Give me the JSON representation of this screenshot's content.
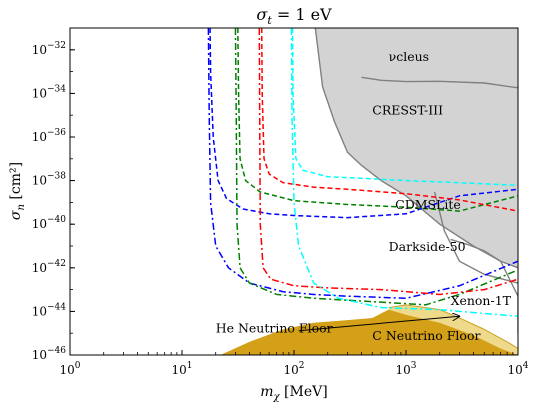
{
  "chart_data": {
    "type": "line",
    "title": "σ_t = 1 eV",
    "xlabel": "m_χ [MeV]",
    "ylabel": "σ_n [cm²]",
    "xscale": "log",
    "yscale": "log",
    "xlim": [
      1,
      10000
    ],
    "ylim": [
      1e-46,
      1e-31
    ],
    "grid": false,
    "x_ticks": [
      {
        "value": 1,
        "base": "10",
        "exp": "0"
      },
      {
        "value": 10,
        "base": "10",
        "exp": "1"
      },
      {
        "value": 100,
        "base": "10",
        "exp": "2"
      },
      {
        "value": 1000,
        "base": "10",
        "exp": "3"
      },
      {
        "value": 10000,
        "base": "10",
        "exp": "4"
      }
    ],
    "y_ticks": [
      {
        "value": 1e-32,
        "base": "10",
        "exp": "−32"
      },
      {
        "value": 1e-34,
        "base": "10",
        "exp": "−34"
      },
      {
        "value": 1e-36,
        "base": "10",
        "exp": "−36"
      },
      {
        "value": 1e-38,
        "base": "10",
        "exp": "−38"
      },
      {
        "value": 1e-40,
        "base": "10",
        "exp": "−40"
      },
      {
        "value": 1e-42,
        "base": "10",
        "exp": "−42"
      },
      {
        "value": 1e-44,
        "base": "10",
        "exp": "−44"
      },
      {
        "value": 1e-46,
        "base": "10",
        "exp": "−46"
      }
    ],
    "colors": {
      "excluded_fill": "#d3d3d3",
      "excluded_edge": "#808080",
      "neutrino_C": "#d4a017",
      "neutrino_He": "#efd98a",
      "blue": "#0000ff",
      "green": "#008000",
      "red": "#ff0000",
      "cyan": "#00ffff"
    },
    "excluded_regions": [
      {
        "points": [
          [
            155,
            1e-31
          ],
          [
            180,
            2e-34
          ],
          [
            230,
            5e-36
          ],
          [
            300,
            2e-37
          ],
          [
            400,
            5e-38
          ],
          [
            600,
            1e-38
          ],
          [
            1000,
            2e-39
          ],
          [
            2000,
            1e-40
          ],
          [
            4000,
            1e-41
          ],
          [
            7000,
            2e-42
          ],
          [
            10000,
            1e-42
          ],
          [
            10000,
            1e-31
          ]
        ]
      }
    ],
    "exp_curves": [
      {
        "points": [
          [
            155,
            1e-31
          ],
          [
            180,
            2e-34
          ],
          [
            230,
            5e-36
          ],
          [
            300,
            2e-37
          ],
          [
            400,
            5e-38
          ],
          [
            600,
            1e-38
          ],
          [
            1000,
            2e-39
          ],
          [
            2000,
            1e-40
          ],
          [
            4000,
            1e-41
          ],
          [
            7000,
            2e-42
          ],
          [
            10000,
            1e-42
          ]
        ]
      },
      {
        "points": [
          [
            400,
            5.5e-34
          ],
          [
            600,
            4e-34
          ],
          [
            1000,
            3.5e-34
          ],
          [
            2000,
            3.6e-34
          ],
          [
            5000,
            3e-34
          ],
          [
            10000,
            1.8e-34
          ]
        ]
      },
      {
        "points": [
          [
            1800,
            3e-39
          ],
          [
            2200,
            5e-41
          ],
          [
            3000,
            2e-42
          ],
          [
            5000,
            5e-43
          ],
          [
            10000,
            2e-43
          ]
        ]
      },
      {
        "points": [
          [
            2500,
            2e-41
          ],
          [
            3500,
            1.2e-41
          ],
          [
            5000,
            6e-42
          ],
          [
            7000,
            2e-42
          ],
          [
            10000,
            5e-44
          ],
          [
            10000,
            1e-45
          ]
        ]
      }
    ],
    "series": [
      {
        "color": "blue",
        "dash": "dashed",
        "points": [
          [
            17.8,
            1e-31
          ],
          [
            18,
            1e-33
          ],
          [
            19,
            1e-36
          ],
          [
            21,
            1e-38
          ],
          [
            25,
            1.5e-39
          ],
          [
            35,
            5e-40
          ],
          [
            60,
            3e-40
          ],
          [
            100,
            2.5e-40
          ],
          [
            300,
            2e-40
          ],
          [
            1000,
            3e-40
          ],
          [
            3000,
            2e-39
          ],
          [
            10000,
            4e-39
          ]
        ]
      },
      {
        "color": "blue",
        "dash": "dashdot",
        "points": [
          [
            17.2,
            1e-31
          ],
          [
            17.5,
            1e-35
          ],
          [
            18,
            1e-39
          ],
          [
            20,
            1e-41
          ],
          [
            26,
            1e-42
          ],
          [
            40,
            2e-43
          ],
          [
            80,
            8e-44
          ],
          [
            150,
            6e-44
          ],
          [
            300,
            5e-44
          ],
          [
            1000,
            4e-44
          ],
          [
            3000,
            1.5e-43
          ],
          [
            10000,
            2e-42
          ]
        ]
      },
      {
        "color": "green",
        "dash": "dashed",
        "points": [
          [
            31.5,
            1e-31
          ],
          [
            32,
            1e-34
          ],
          [
            33,
            1e-37
          ],
          [
            37,
            1e-38
          ],
          [
            50,
            3e-39
          ],
          [
            100,
            1.2e-39
          ],
          [
            300,
            8e-40
          ],
          [
            1000,
            6e-40
          ],
          [
            3000,
            4e-40
          ],
          [
            10000,
            2e-39
          ]
        ]
      },
      {
        "color": "green",
        "dash": "dashdot",
        "points": [
          [
            30,
            1e-31
          ],
          [
            30.5,
            1e-35
          ],
          [
            31,
            1e-40
          ],
          [
            33,
            1e-42
          ],
          [
            40,
            2e-43
          ],
          [
            70,
            6e-44
          ],
          [
            150,
            4e-44
          ],
          [
            400,
            3e-44
          ],
          [
            1500,
            2e-44
          ],
          [
            3000,
            6e-44
          ],
          [
            10000,
            8e-43
          ]
        ]
      },
      {
        "color": "red",
        "dash": "dashed",
        "points": [
          [
            51.5,
            1e-31
          ],
          [
            52,
            1e-34
          ],
          [
            54,
            1e-37
          ],
          [
            60,
            2e-38
          ],
          [
            80,
            8e-39
          ],
          [
            150,
            5e-39
          ],
          [
            300,
            4e-39
          ],
          [
            1000,
            2.5e-39
          ],
          [
            3000,
            1.3e-39
          ],
          [
            10000,
            4e-40
          ]
        ]
      },
      {
        "color": "red",
        "dash": "dashdot",
        "points": [
          [
            49,
            1e-31
          ],
          [
            49.5,
            1e-36
          ],
          [
            50,
            1e-40
          ],
          [
            53,
            1e-42
          ],
          [
            62,
            3e-43
          ],
          [
            100,
            1.5e-43
          ],
          [
            200,
            1.2e-43
          ],
          [
            600,
            1e-43
          ],
          [
            2000,
            6e-44
          ],
          [
            5000,
            1e-43
          ],
          [
            10000,
            3e-43
          ]
        ]
      },
      {
        "color": "cyan",
        "dash": "dashed",
        "points": [
          [
            97,
            1e-31
          ],
          [
            98,
            1e-34
          ],
          [
            104,
            1e-37
          ],
          [
            120,
            3e-38
          ],
          [
            200,
            1.5e-38
          ],
          [
            500,
            1.2e-38
          ],
          [
            1000,
            1e-38
          ],
          [
            3000,
            8e-39
          ],
          [
            10000,
            6e-39
          ]
        ]
      },
      {
        "color": "cyan",
        "dash": "dashdot",
        "points": [
          [
            95,
            1e-31
          ],
          [
            96,
            1e-35
          ],
          [
            100,
            1e-39
          ],
          [
            110,
            1e-41
          ],
          [
            150,
            2e-43
          ],
          [
            250,
            4e-44
          ],
          [
            600,
            1.5e-44
          ],
          [
            2000,
            1.2e-44
          ],
          [
            5000,
            8e-45
          ],
          [
            10000,
            6e-45
          ]
        ]
      }
    ],
    "neutrino_floor": {
      "c_floor": [
        [
          17,
          1e-46
        ],
        [
          20,
          8e-47
        ],
        [
          40,
          4e-46
        ],
        [
          80,
          1.5e-45
        ],
        [
          150,
          3e-45
        ],
        [
          300,
          4e-45
        ],
        [
          500,
          5e-45
        ],
        [
          700,
          1.2e-44
        ],
        [
          1000,
          7e-45
        ],
        [
          2000,
          3e-45
        ],
        [
          4000,
          8e-46
        ],
        [
          7000,
          2e-46
        ],
        [
          10000,
          1e-46
        ],
        [
          10000,
          1e-46
        ]
      ],
      "he_band_top": [
        [
          700,
          1.5e-44
        ],
        [
          1000,
          2e-44
        ],
        [
          1500,
          1.5e-44
        ],
        [
          2000,
          1.2e-44
        ],
        [
          3000,
          5e-45
        ],
        [
          5000,
          1.5e-45
        ],
        [
          8000,
          4e-46
        ],
        [
          10000,
          2e-46
        ]
      ]
    },
    "annotations": [
      {
        "text": "νcleus",
        "x": 700,
        "y": 3e-33
      },
      {
        "text": "CRESST-III",
        "x": 500,
        "y": 1.1e-35
      },
      {
        "text": "CDMSLite",
        "x": 800,
        "y": 5e-40
      },
      {
        "text": "Darkside-50",
        "x": 700,
        "y": 6e-42
      },
      {
        "text": "Xenon-1T",
        "x": 2500,
        "y": 2e-44
      },
      {
        "text": "He Neutrino Floor",
        "x": 20,
        "y": 1.1e-45
      },
      {
        "text": "C Neutrino Floor",
        "x": 500,
        "y": 5e-46
      }
    ],
    "arrow": {
      "from": [
        110,
        1.3e-45
      ],
      "to": [
        3000,
        6e-45
      ]
    }
  }
}
